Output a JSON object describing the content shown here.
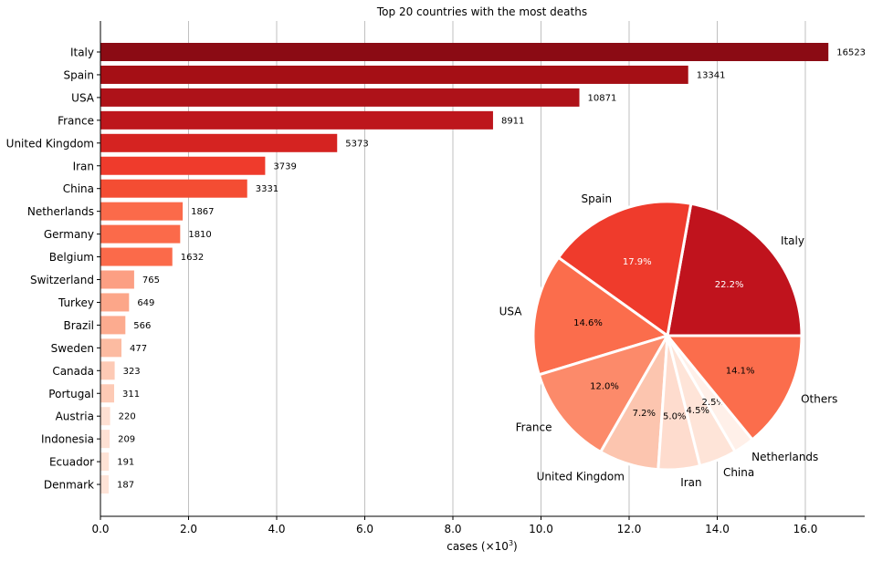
{
  "chart_data": [
    {
      "type": "bar",
      "orientation": "horizontal",
      "title": "Top 20 countries with the most deaths",
      "xlabel": "cases (×10",
      "xlabel_exponent": "3",
      "xlabel_suffix": ")",
      "xlim": [
        0,
        17.4
      ],
      "xticks": [
        0,
        2,
        4,
        6,
        8,
        10,
        12,
        14,
        16
      ],
      "xtick_labels": [
        "0.0",
        "2.0",
        "4.0",
        "6.0",
        "8.0",
        "10.0",
        "12.0",
        "14.0",
        "16.0"
      ],
      "grid": "vertical",
      "categories": [
        "Italy",
        "Spain",
        "USA",
        "France",
        "United Kingdom",
        "Iran",
        "China",
        "Netherlands",
        "Germany",
        "Belgium",
        "Switzerland",
        "Turkey",
        "Brazil",
        "Sweden",
        "Canada",
        "Portugal",
        "Austria",
        "Indonesia",
        "Ecuador",
        "Denmark"
      ],
      "values": [
        16523,
        13341,
        10871,
        8911,
        5373,
        3739,
        3331,
        1867,
        1810,
        1632,
        765,
        649,
        566,
        477,
        323,
        311,
        220,
        209,
        191,
        187
      ],
      "value_labels": [
        "16523",
        "13341",
        "10871",
        "8911",
        "5373",
        "3739",
        "3331",
        "1867",
        "1810",
        "1632",
        "765",
        "649",
        "566",
        "477",
        "323",
        "311",
        "220",
        "209",
        "191",
        "187"
      ],
      "colors": [
        "#8b0b14",
        "#a50f15",
        "#ae1219",
        "#bd161c",
        "#d52321",
        "#ef3b2c",
        "#f44d33",
        "#fb6a4a",
        "#fb6a4a",
        "#fb6a4a",
        "#fc9f83",
        "#fca689",
        "#fcab8f",
        "#fcbba1",
        "#fdcab5",
        "#fdcab5",
        "#fedfd2",
        "#fee0d3",
        "#fee2d5",
        "#fee3d7"
      ]
    },
    {
      "type": "pie",
      "slices": [
        {
          "label": "Italy",
          "percent": 22.2,
          "pct_label": "22.2%",
          "color": "#c0131d",
          "pct_color": "#ffffff"
        },
        {
          "label": "Spain",
          "percent": 17.9,
          "pct_label": "17.9%",
          "color": "#ef3b2c",
          "pct_color": "#ffffff"
        },
        {
          "label": "USA",
          "percent": 14.6,
          "pct_label": "14.6%",
          "color": "#fb6d4c",
          "pct_color": "#000000"
        },
        {
          "label": "France",
          "percent": 12.0,
          "pct_label": "12.0%",
          "color": "#fc8a6a",
          "pct_color": "#000000"
        },
        {
          "label": "United Kingdom",
          "percent": 7.2,
          "pct_label": "7.2%",
          "color": "#fcc5af",
          "pct_color": "#000000"
        },
        {
          "label": "Iran",
          "percent": 5.0,
          "pct_label": "5.0%",
          "color": "#fedcce",
          "pct_color": "#000000"
        },
        {
          "label": "China",
          "percent": 4.5,
          "pct_label": "4.5%",
          "color": "#fee4d8",
          "pct_color": "#000000"
        },
        {
          "label": "Netherlands",
          "percent": 2.5,
          "pct_label": "2.5%",
          "color": "#fff0e9",
          "pct_color": "#000000"
        },
        {
          "label": "Others",
          "percent": 14.1,
          "pct_label": "14.1%",
          "color": "#fb6d4c",
          "pct_color": "#000000"
        }
      ]
    }
  ]
}
